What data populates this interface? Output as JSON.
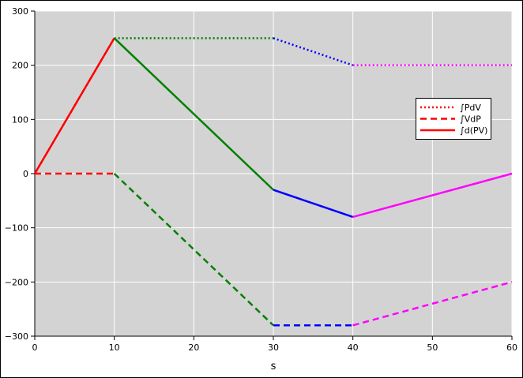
{
  "chart_data": {
    "type": "line",
    "xlabel": "s",
    "x": [
      0,
      10,
      30,
      40,
      60
    ],
    "segment_colors": [
      "#ff0000",
      "#008000",
      "#0000ff",
      "#ff00ff"
    ],
    "series": [
      {
        "name": "∫PdV",
        "color": "#ff0000",
        "dash": "dotted",
        "values": [
          0,
          250,
          250,
          200,
          200
        ]
      },
      {
        "name": "∫VdP",
        "color": "#ff0000",
        "dash": "dashed",
        "values": [
          0,
          0,
          -280,
          -280,
          -200
        ]
      },
      {
        "name": "∫d(PV)",
        "color": "#ff0000",
        "dash": "solid",
        "values": [
          0,
          250,
          -30,
          -80,
          0
        ]
      }
    ],
    "xlim": [
      0,
      60
    ],
    "xticks": [
      0,
      10,
      20,
      30,
      40,
      50,
      60
    ],
    "ylim": [
      -300,
      300
    ],
    "yticks": [
      {
        "value": -300,
        "label": "−300"
      },
      {
        "value": -200,
        "label": "−200"
      },
      {
        "value": -100,
        "label": "−100"
      },
      0,
      100,
      200,
      300
    ],
    "grid": true,
    "legend": "upper right"
  }
}
